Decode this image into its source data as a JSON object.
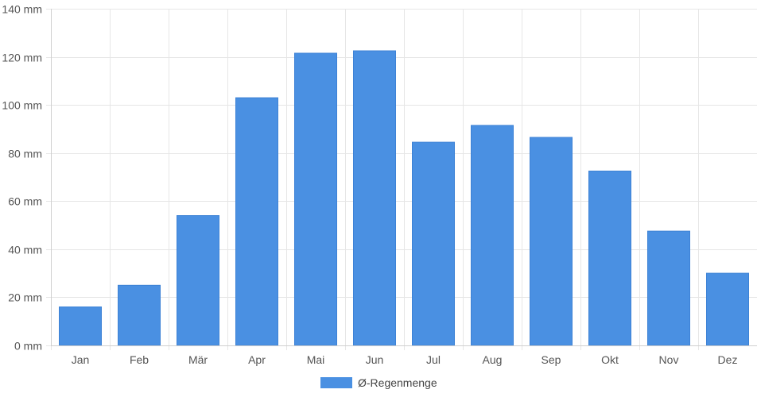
{
  "chart_data": {
    "type": "bar",
    "title": "",
    "xlabel": "",
    "ylabel": "",
    "categories": [
      "Jan",
      "Feb",
      "Mär",
      "Apr",
      "Mai",
      "Jun",
      "Jul",
      "Aug",
      "Sep",
      "Okt",
      "Nov",
      "Dez"
    ],
    "series": [
      {
        "name": "Ø-Regenmenge",
        "values": [
          16,
          25,
          54,
          103,
          121.5,
          122.5,
          84.5,
          91.5,
          86.5,
          72.5,
          47.5,
          30
        ],
        "color": "#4a90e2"
      }
    ],
    "ylim": [
      0,
      140
    ],
    "yticks": [
      0,
      20,
      40,
      60,
      80,
      100,
      120,
      140
    ],
    "ytick_labels": [
      "0 mm",
      "20 mm",
      "40 mm",
      "60 mm",
      "80 mm",
      "100 mm",
      "120 mm",
      "140 mm"
    ],
    "grid": true,
    "legend": "bottom-center"
  }
}
